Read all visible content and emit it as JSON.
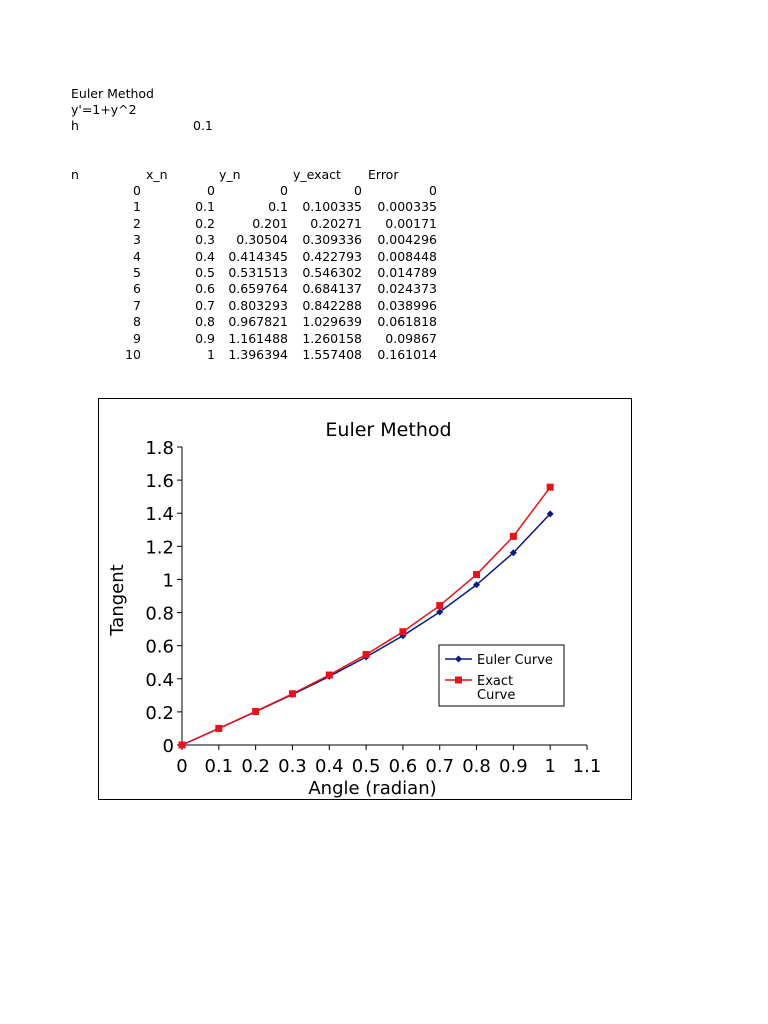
{
  "sheet": {
    "title": "Euler Method",
    "equation": "y'=1+y^2",
    "step_label": "h",
    "step_value": "0.1",
    "table": {
      "headers": [
        "n",
        "x_n",
        "y_n",
        "y_exact",
        "Error"
      ],
      "rows": [
        [
          "0",
          "0",
          "0",
          "0",
          "0"
        ],
        [
          "1",
          "0.1",
          "0.1",
          "0.100335",
          "0.000335"
        ],
        [
          "2",
          "0.2",
          "0.201",
          "0.20271",
          "0.00171"
        ],
        [
          "3",
          "0.3",
          "0.30504",
          "0.309336",
          "0.004296"
        ],
        [
          "4",
          "0.4",
          "0.414345",
          "0.422793",
          "0.008448"
        ],
        [
          "5",
          "0.5",
          "0.531513",
          "0.546302",
          "0.014789"
        ],
        [
          "6",
          "0.6",
          "0.659764",
          "0.684137",
          "0.024373"
        ],
        [
          "7",
          "0.7",
          "0.803293",
          "0.842288",
          "0.038996"
        ],
        [
          "8",
          "0.8",
          "0.967821",
          "1.029639",
          "0.061818"
        ],
        [
          "9",
          "0.9",
          "1.161488",
          "1.260158",
          "0.09867"
        ],
        [
          "10",
          "1",
          "1.396394",
          "1.557408",
          "0.161014"
        ]
      ]
    }
  },
  "chart_data": {
    "type": "line",
    "title": "Euler Method",
    "xlabel": "Angle (radian)",
    "ylabel": "Tangent",
    "xlim": [
      0,
      1.1
    ],
    "ylim": [
      0,
      1.8
    ],
    "x_ticks": [
      "0",
      "0.1",
      "0.2",
      "0.3",
      "0.4",
      "0.5",
      "0.6",
      "0.7",
      "0.8",
      "0.9",
      "1",
      "1.1"
    ],
    "y_ticks": [
      "0",
      "0.2",
      "0.4",
      "0.6",
      "0.8",
      "1",
      "1.2",
      "1.4",
      "1.6",
      "1.8"
    ],
    "grid": false,
    "legend_position": "right",
    "x": [
      0,
      0.1,
      0.2,
      0.3,
      0.4,
      0.5,
      0.6,
      0.7,
      0.8,
      0.9,
      1
    ],
    "series": [
      {
        "name": "Euler Curve",
        "legend_lines": [
          "Euler Curve"
        ],
        "color": "#0a1a80",
        "marker": "diamond",
        "values": [
          0,
          0.1,
          0.201,
          0.30504,
          0.414345,
          0.531513,
          0.659764,
          0.803293,
          0.967821,
          1.161488,
          1.396394
        ]
      },
      {
        "name": "Exact Curve",
        "legend_lines": [
          "Exact",
          "Curve"
        ],
        "color": "#e8101a",
        "marker": "square",
        "values": [
          0,
          0.100335,
          0.20271,
          0.309336,
          0.422793,
          0.546302,
          0.684137,
          0.842288,
          1.029639,
          1.260158,
          1.557408
        ]
      }
    ]
  }
}
